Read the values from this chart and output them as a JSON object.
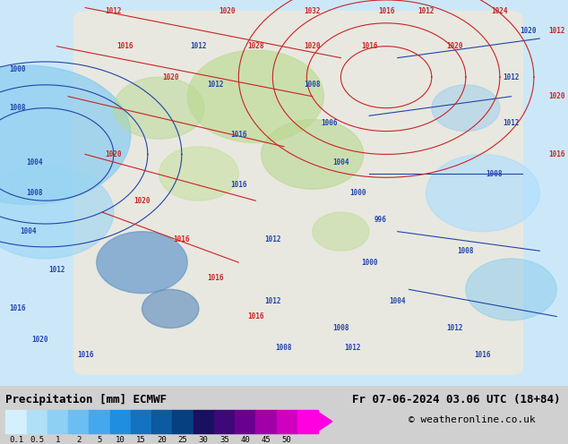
{
  "title_left": "Precipitation [mm] ECMWF",
  "title_right": "Fr 07-06-2024 03.06 UTC (18+84)",
  "copyright": "© weatheronline.co.uk",
  "colorbar_values": [
    0.1,
    0.5,
    1,
    2,
    5,
    10,
    15,
    20,
    25,
    30,
    35,
    40,
    45,
    50
  ],
  "colorbar_colors": [
    "#d4f0fc",
    "#b0e0f8",
    "#8ecff5",
    "#6bbef2",
    "#44a8ef",
    "#1f8de0",
    "#1472c0",
    "#0c5aa0",
    "#064080",
    "#1a1060",
    "#3d0878",
    "#6a0090",
    "#a000a8",
    "#d000c0",
    "#ff00e0"
  ],
  "bg_color": "#d0d0d0",
  "map_bg": "#f0f0f0",
  "ocean_color": "#cce8f8",
  "font_size_title": 9,
  "font_size_tick": 8,
  "font_size_copyright": 8
}
